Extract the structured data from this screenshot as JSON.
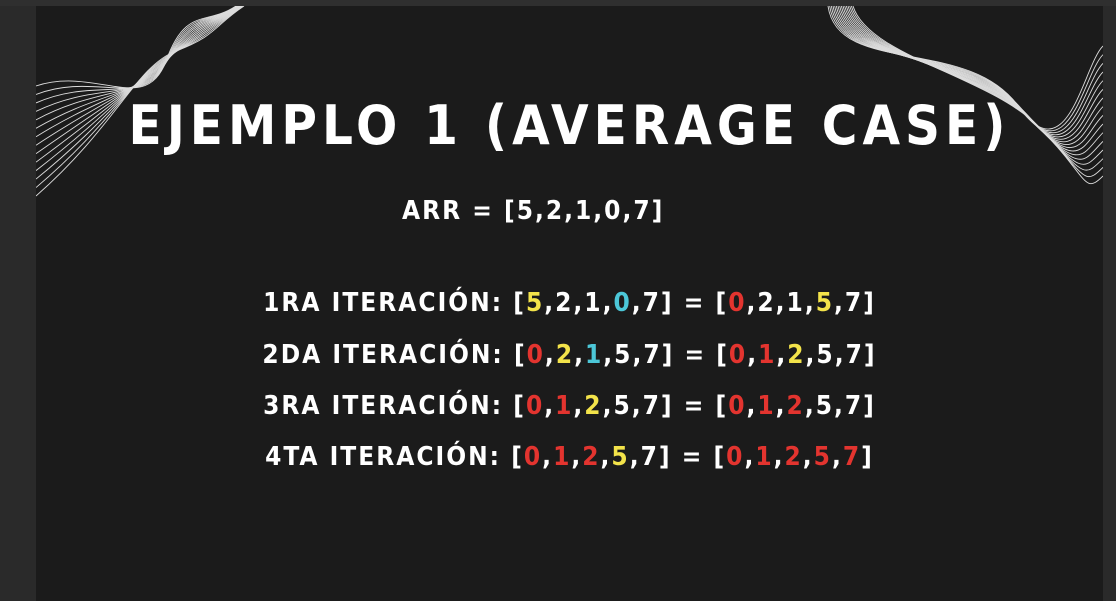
{
  "colors": {
    "white": "#ffffff",
    "yellow": "#f3e34a",
    "cyan": "#4cc7d8",
    "red": "#e3342f",
    "slide_bg": "#1b1b1b"
  },
  "slide": {
    "title": "EJEMPLO 1 (AVERAGE CASE)",
    "arr_label": "ARR = [5,2,1,0,7]",
    "iterations": [
      {
        "label": "1RA ITERACIÓN: ",
        "before": [
          {
            "v": "5",
            "c": "yellow"
          },
          {
            "v": "2",
            "c": "white"
          },
          {
            "v": "1",
            "c": "white"
          },
          {
            "v": "0",
            "c": "cyan"
          },
          {
            "v": "7",
            "c": "white"
          }
        ],
        "after": [
          {
            "v": "0",
            "c": "red"
          },
          {
            "v": "2",
            "c": "white"
          },
          {
            "v": "1",
            "c": "white"
          },
          {
            "v": "5",
            "c": "yellow"
          },
          {
            "v": "7",
            "c": "white"
          }
        ]
      },
      {
        "label": "2DA ITERACIÓN: ",
        "before": [
          {
            "v": "0",
            "c": "red"
          },
          {
            "v": "2",
            "c": "yellow"
          },
          {
            "v": "1",
            "c": "cyan"
          },
          {
            "v": "5",
            "c": "white"
          },
          {
            "v": "7",
            "c": "white"
          }
        ],
        "after": [
          {
            "v": "0",
            "c": "red"
          },
          {
            "v": "1",
            "c": "red"
          },
          {
            "v": "2",
            "c": "yellow"
          },
          {
            "v": "5",
            "c": "white"
          },
          {
            "v": "7",
            "c": "white"
          }
        ]
      },
      {
        "label": "3RA ITERACIÓN: ",
        "before": [
          {
            "v": "0",
            "c": "red"
          },
          {
            "v": "1",
            "c": "red"
          },
          {
            "v": "2",
            "c": "yellow"
          },
          {
            "v": "5",
            "c": "white"
          },
          {
            "v": "7",
            "c": "white"
          }
        ],
        "after": [
          {
            "v": "0",
            "c": "red"
          },
          {
            "v": "1",
            "c": "red"
          },
          {
            "v": "2",
            "c": "red"
          },
          {
            "v": "5",
            "c": "white"
          },
          {
            "v": "7",
            "c": "white"
          }
        ]
      },
      {
        "label": "4TA ITERACIÓN: ",
        "before": [
          {
            "v": "0",
            "c": "red"
          },
          {
            "v": "1",
            "c": "red"
          },
          {
            "v": "2",
            "c": "red"
          },
          {
            "v": "5",
            "c": "yellow"
          },
          {
            "v": "7",
            "c": "white"
          }
        ],
        "after": [
          {
            "v": "0",
            "c": "red"
          },
          {
            "v": "1",
            "c": "red"
          },
          {
            "v": "2",
            "c": "red"
          },
          {
            "v": "5",
            "c": "red"
          },
          {
            "v": "7",
            "c": "red"
          }
        ]
      }
    ]
  }
}
